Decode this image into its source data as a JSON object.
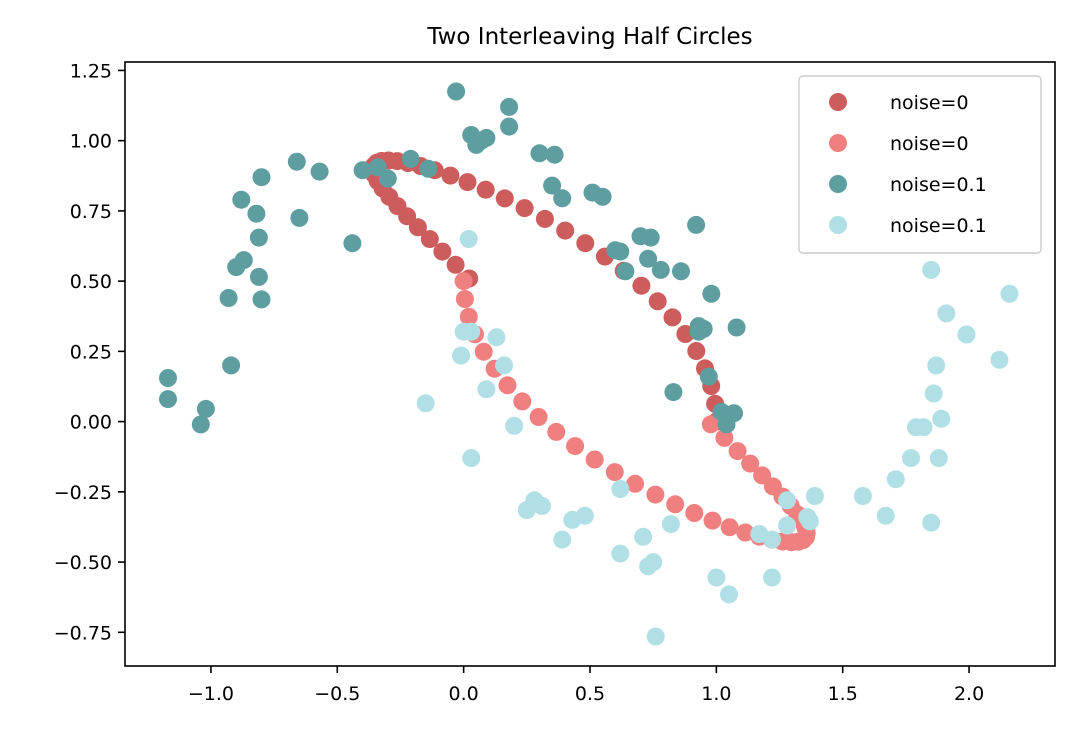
{
  "chart_data": {
    "type": "scatter",
    "title": "Two Interleaving Half Circles",
    "xlabel": "",
    "ylabel": "",
    "xlim": [
      -1.34,
      2.34
    ],
    "ylim": [
      -0.87,
      1.28
    ],
    "x_ticks": [
      -1.0,
      -0.5,
      0.0,
      0.5,
      1.0,
      1.5,
      2.0
    ],
    "x_tick_labels": [
      "−1.0",
      "−0.5",
      "0.0",
      "0.5",
      "1.0",
      "1.5",
      "2.0"
    ],
    "y_ticks": [
      1.25,
      1.0,
      0.75,
      0.5,
      0.25,
      0.0,
      -0.25,
      -0.5,
      -0.75
    ],
    "y_tick_labels": [
      "1.25",
      "1.00",
      "0.75",
      "0.50",
      "0.25",
      "0.00",
      "−0.25",
      "−0.50",
      "−0.75"
    ],
    "grid": false,
    "legend_position": "upper right",
    "series": [
      {
        "name": "noise=0",
        "color": "#cd5c5c",
        "x": [
          1.0,
          0.9949,
          0.9797,
          0.9549,
          0.9206,
          0.8776,
          0.8265,
          0.768,
          0.7033,
          0.6332,
          0.5588,
          0.4813,
          0.4017,
          0.3214,
          0.2414,
          0.1629,
          0.0871,
          0.0151,
          -0.0523,
          -0.1144,
          -0.1705,
          -0.2201,
          -0.2625,
          -0.2975,
          -0.3246,
          -0.3437,
          -0.3547,
          -0.3576,
          -0.3527,
          -0.3402,
          -0.3205,
          -0.2941,
          -0.2616,
          -0.2236,
          -0.1808,
          -0.134,
          -0.084,
          -0.0318,
          0.0218
        ],
        "y": [
          0.0,
          0.0635,
          0.1266,
          0.1893,
          0.2511,
          0.3117,
          0.3708,
          0.4282,
          0.4836,
          0.5367,
          0.5873,
          0.6351,
          0.6799,
          0.7215,
          0.7598,
          0.7945,
          0.8255,
          0.8526,
          0.8758,
          0.8949,
          0.9099,
          0.9206,
          0.9271,
          0.9294,
          0.9275,
          0.9214,
          0.9111,
          0.8967,
          0.8783,
          0.856,
          0.8299,
          0.8002,
          0.7671,
          0.7308,
          0.6915,
          0.6495,
          0.605,
          0.5582,
          0.5095
        ]
      },
      {
        "name": "noise=0",
        "color": "#f08080",
        "x": [
          0.0,
          0.0051,
          0.0203,
          0.0451,
          0.0794,
          0.1224,
          0.1735,
          0.232,
          0.2967,
          0.3668,
          0.4412,
          0.5187,
          0.5983,
          0.6786,
          0.7586,
          0.8371,
          0.9129,
          0.9849,
          1.0523,
          1.1144,
          1.1705,
          1.2201,
          1.2625,
          1.2975,
          1.3246,
          1.3437,
          1.3547,
          1.3576,
          1.3527,
          1.3402,
          1.3205,
          1.2941,
          1.2616,
          1.2236,
          1.1808,
          1.134,
          1.084,
          1.0318,
          0.9782
        ],
        "y": [
          0.5,
          0.4365,
          0.3734,
          0.3107,
          0.2489,
          0.1883,
          0.1292,
          0.0718,
          0.0164,
          -0.0367,
          -0.0873,
          -0.1351,
          -0.1799,
          -0.2215,
          -0.2598,
          -0.2945,
          -0.3255,
          -0.3526,
          -0.3758,
          -0.3949,
          -0.4099,
          -0.4206,
          -0.4271,
          -0.4294,
          -0.4275,
          -0.4214,
          -0.4111,
          -0.3967,
          -0.3783,
          -0.356,
          -0.3299,
          -0.3002,
          -0.2671,
          -0.2308,
          -0.1915,
          -0.1495,
          -0.105,
          -0.0582,
          -0.0095
        ]
      },
      {
        "name": "noise=0.1",
        "color": "#5f9ea0",
        "x": [
          -1.17,
          -1.17,
          -1.04,
          -1.02,
          -0.93,
          -0.92,
          -0.9,
          -0.88,
          -0.87,
          -0.82,
          -0.81,
          -0.81,
          -0.8,
          -0.8,
          -0.66,
          -0.65,
          -0.57,
          -0.44,
          -0.4,
          -0.34,
          -0.3,
          -0.21,
          -0.14,
          -0.03,
          0.03,
          0.05,
          0.07,
          0.09,
          0.18,
          0.18,
          0.3,
          0.35,
          0.36,
          0.39,
          0.51,
          0.55,
          0.6,
          0.62,
          0.64,
          0.7,
          0.73,
          0.74,
          0.78,
          0.83,
          0.86,
          0.92,
          0.93,
          0.93,
          0.95,
          0.97,
          0.98,
          1.02,
          1.04,
          1.07,
          1.08
        ],
        "y": [
          0.155,
          0.08,
          -0.01,
          0.045,
          0.44,
          0.2,
          0.55,
          0.79,
          0.575,
          0.74,
          0.515,
          0.655,
          0.87,
          0.435,
          0.925,
          0.725,
          0.89,
          0.635,
          0.895,
          0.905,
          0.865,
          0.935,
          0.9,
          1.175,
          1.02,
          0.985,
          1.0,
          1.01,
          1.05,
          1.12,
          0.955,
          0.84,
          0.95,
          0.795,
          0.815,
          0.8,
          0.61,
          0.605,
          0.535,
          0.66,
          0.58,
          0.655,
          0.54,
          0.105,
          0.535,
          0.7,
          0.32,
          0.34,
          0.33,
          0.16,
          0.455,
          0.035,
          -0.01,
          0.03,
          0.335
        ]
      },
      {
        "name": "noise=0.1",
        "color": "#b0e0e6",
        "x": [
          -0.15,
          -0.01,
          0.0,
          0.02,
          0.03,
          0.03,
          0.09,
          0.13,
          0.16,
          0.2,
          0.25,
          0.28,
          0.31,
          0.39,
          0.43,
          0.48,
          0.62,
          0.62,
          0.71,
          0.73,
          0.75,
          0.76,
          0.82,
          1.0,
          1.05,
          1.17,
          1.22,
          1.22,
          1.28,
          1.28,
          1.36,
          1.37,
          1.39,
          1.58,
          1.67,
          1.71,
          1.77,
          1.79,
          1.82,
          1.85,
          1.85,
          1.86,
          1.87,
          1.88,
          1.89,
          1.91,
          1.99,
          2.12,
          2.16
        ],
        "y": [
          0.065,
          0.235,
          0.32,
          0.65,
          -0.13,
          0.32,
          0.115,
          0.3,
          0.2,
          -0.015,
          -0.315,
          -0.28,
          -0.3,
          -0.42,
          -0.35,
          -0.335,
          -0.24,
          -0.47,
          -0.41,
          -0.515,
          -0.5,
          -0.765,
          -0.365,
          -0.555,
          -0.615,
          -0.4,
          -0.42,
          -0.555,
          -0.28,
          -0.37,
          -0.34,
          -0.355,
          -0.265,
          -0.265,
          -0.335,
          -0.205,
          -0.13,
          -0.02,
          -0.02,
          0.54,
          -0.36,
          0.1,
          0.2,
          -0.13,
          0.01,
          0.385,
          0.31,
          0.22,
          0.455
        ]
      }
    ]
  }
}
